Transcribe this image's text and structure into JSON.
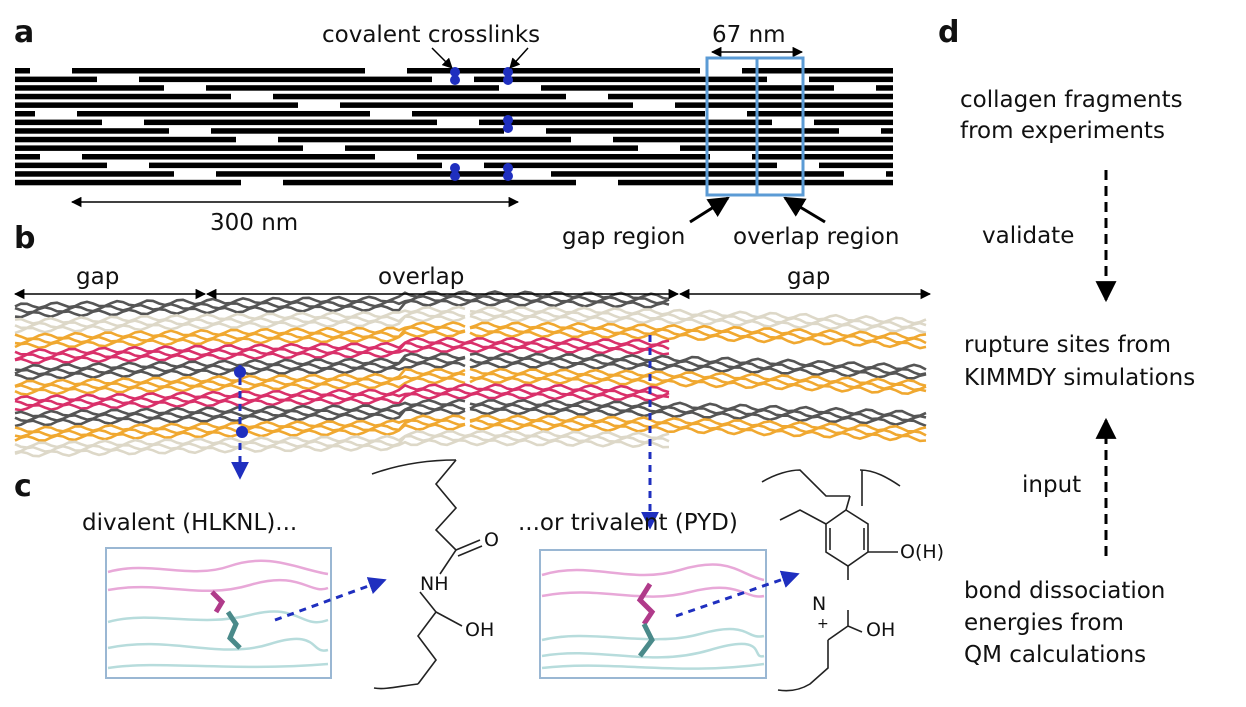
{
  "panel_a": {
    "label": "a",
    "crosslinks": "covalent crosslinks",
    "period": "67 nm",
    "length": "300 nm",
    "gap_region": "gap region",
    "overlap_region": "overlap region"
  },
  "panel_b": {
    "label": "b",
    "gap_left": "gap",
    "overlap": "overlap",
    "gap_right": "gap"
  },
  "panel_c": {
    "label": "c",
    "divalent": "divalent (HLKNL)...",
    "trivalent": "...or trivalent (PYD)",
    "hlknl_atoms": [
      "O",
      "NH",
      "OH"
    ],
    "pyd_atoms": [
      "N",
      "+",
      "O(H)",
      "OH"
    ]
  },
  "panel_d": {
    "label": "d",
    "experiments": [
      "collagen fragments",
      "from experiments"
    ],
    "validate": "validate",
    "simulations": [
      "rupture sites from",
      "KIMMDY simulations"
    ],
    "input": "input",
    "qm": [
      "bond dissociation",
      "energies from",
      "QM calculations"
    ]
  }
}
